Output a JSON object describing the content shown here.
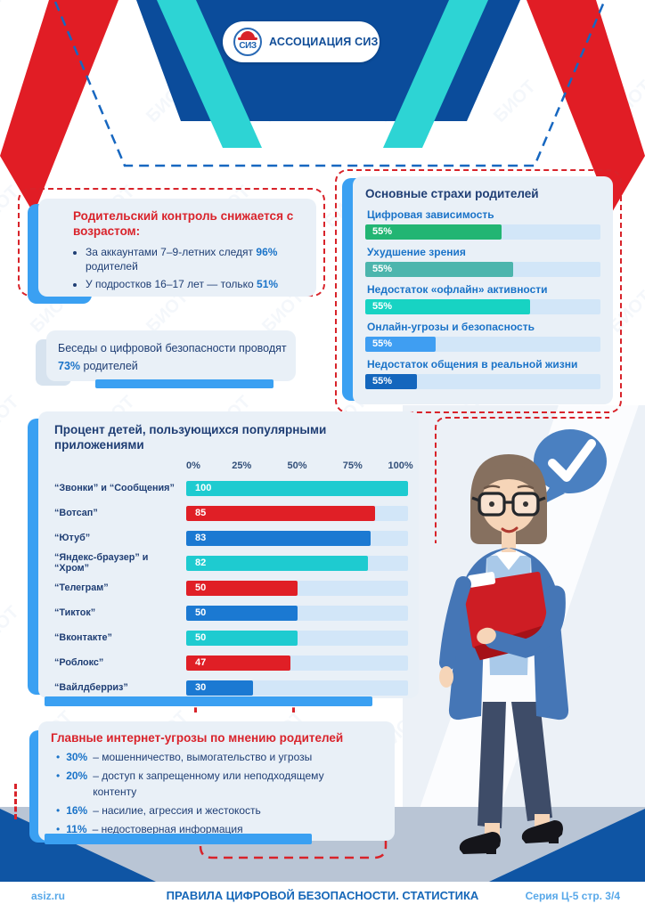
{
  "page": {
    "watermark_text": "БИОТ",
    "logo": {
      "text": "АССОЦИАЦИЯ СИЗ",
      "mark_text": "СИЗ"
    },
    "footer": {
      "site": "asiz.ru",
      "title": "ПРАВИЛА ЦИФРОВОЙ БЕЗОПАСНОСТИ. СТАТИСТИКА",
      "series": "Серия Ц-5 стр. 3/4"
    },
    "colors": {
      "header_navy": "#0b4c9b",
      "accent_blue": "#3aa0f2",
      "brand_red": "#e11d25",
      "teal": "#2dd4d4",
      "card_bg": "#e9f0f7",
      "value_blue": "#1a73c8",
      "title_red": "#d9232b",
      "text_navy": "#1f3e74"
    }
  },
  "parental_control": {
    "title": "Родительский контроль снижается с возрастом:",
    "bullets": [
      {
        "pre": "За аккаунтами 7–9-летних следят ",
        "value": "96%",
        "post": " родителей"
      },
      {
        "pre": "У подростков 16–17 лет — только ",
        "value": "51%",
        "post": ""
      }
    ]
  },
  "talks": {
    "pre": "Беседы о цифровой безопасности проводят ",
    "value": "73%",
    "post": " родителей"
  },
  "threats": {
    "title": "Главные интернет-угрозы по мнению родителей",
    "items": [
      {
        "value": "30%",
        "text": "–  мошенничество, вымогательство и угрозы"
      },
      {
        "value": "20%",
        "text": "–  доступ к запрещенному или неподходящему контенту"
      },
      {
        "value": "16%",
        "text": "–  насилие, агрессия и жестокость"
      },
      {
        "value": "11%",
        "text": "–  недостоверная информация"
      }
    ]
  },
  "chart_data": [
    {
      "type": "bar",
      "orientation": "horizontal",
      "title": "Основные страхи родителей",
      "note": "all value labels read 55%; bar lengths vary",
      "rows": [
        {
          "label": "Цифровая зависимость",
          "value": 55,
          "value_label": "55%",
          "width_pct": 58,
          "color": "#22b573"
        },
        {
          "label": "Ухудшение зрения",
          "value": 55,
          "value_label": "55%",
          "width_pct": 63,
          "color": "#4cb5ad"
        },
        {
          "label": "Недостаток «офлайн» активности",
          "value": 55,
          "value_label": "55%",
          "width_pct": 70,
          "color": "#17d3c3"
        },
        {
          "label": "Онлайн-угрозы и безопасность",
          "value": 55,
          "value_label": "55%",
          "width_pct": 30,
          "color": "#3f9ef2"
        },
        {
          "label": "Недостаток общения в реальной жизни",
          "value": 55,
          "value_label": "55%",
          "width_pct": 22,
          "color": "#1466bd"
        }
      ]
    },
    {
      "type": "bar",
      "orientation": "horizontal",
      "title": "Процент детей, пользующихся популярными приложениями",
      "xlim": [
        0,
        100
      ],
      "x_ticks": [
        "0%",
        "25%",
        "50%",
        "75%",
        "100%"
      ],
      "rows": [
        {
          "label": "“Звонки” и “Сообщения”",
          "value": 100,
          "width_pct": 100,
          "color": "#1ecbd0"
        },
        {
          "label": "“Вотсап”",
          "value": 85,
          "width_pct": 85,
          "color": "#e01f26"
        },
        {
          "label": "“Ютуб”",
          "value": 83,
          "width_pct": 83,
          "color": "#1b79d2"
        },
        {
          "label": "“Яндекс-браузер” и “Хром”",
          "value": 82,
          "width_pct": 82,
          "color": "#1ecbd0"
        },
        {
          "label": "“Телеграм”",
          "value": 50,
          "width_pct": 50,
          "color": "#e01f26"
        },
        {
          "label": "“Тикток”",
          "value": 50,
          "width_pct": 50,
          "color": "#1b79d2"
        },
        {
          "label": "“Вконтакте”",
          "value": 50,
          "width_pct": 50,
          "color": "#1ecbd0"
        },
        {
          "label": "“Роблокс”",
          "value": 47,
          "width_pct": 47,
          "color": "#e01f26"
        },
        {
          "label": "“Вайлдберриз”",
          "value": 30,
          "width_pct": 30,
          "color": "#1b79d2"
        }
      ]
    }
  ]
}
